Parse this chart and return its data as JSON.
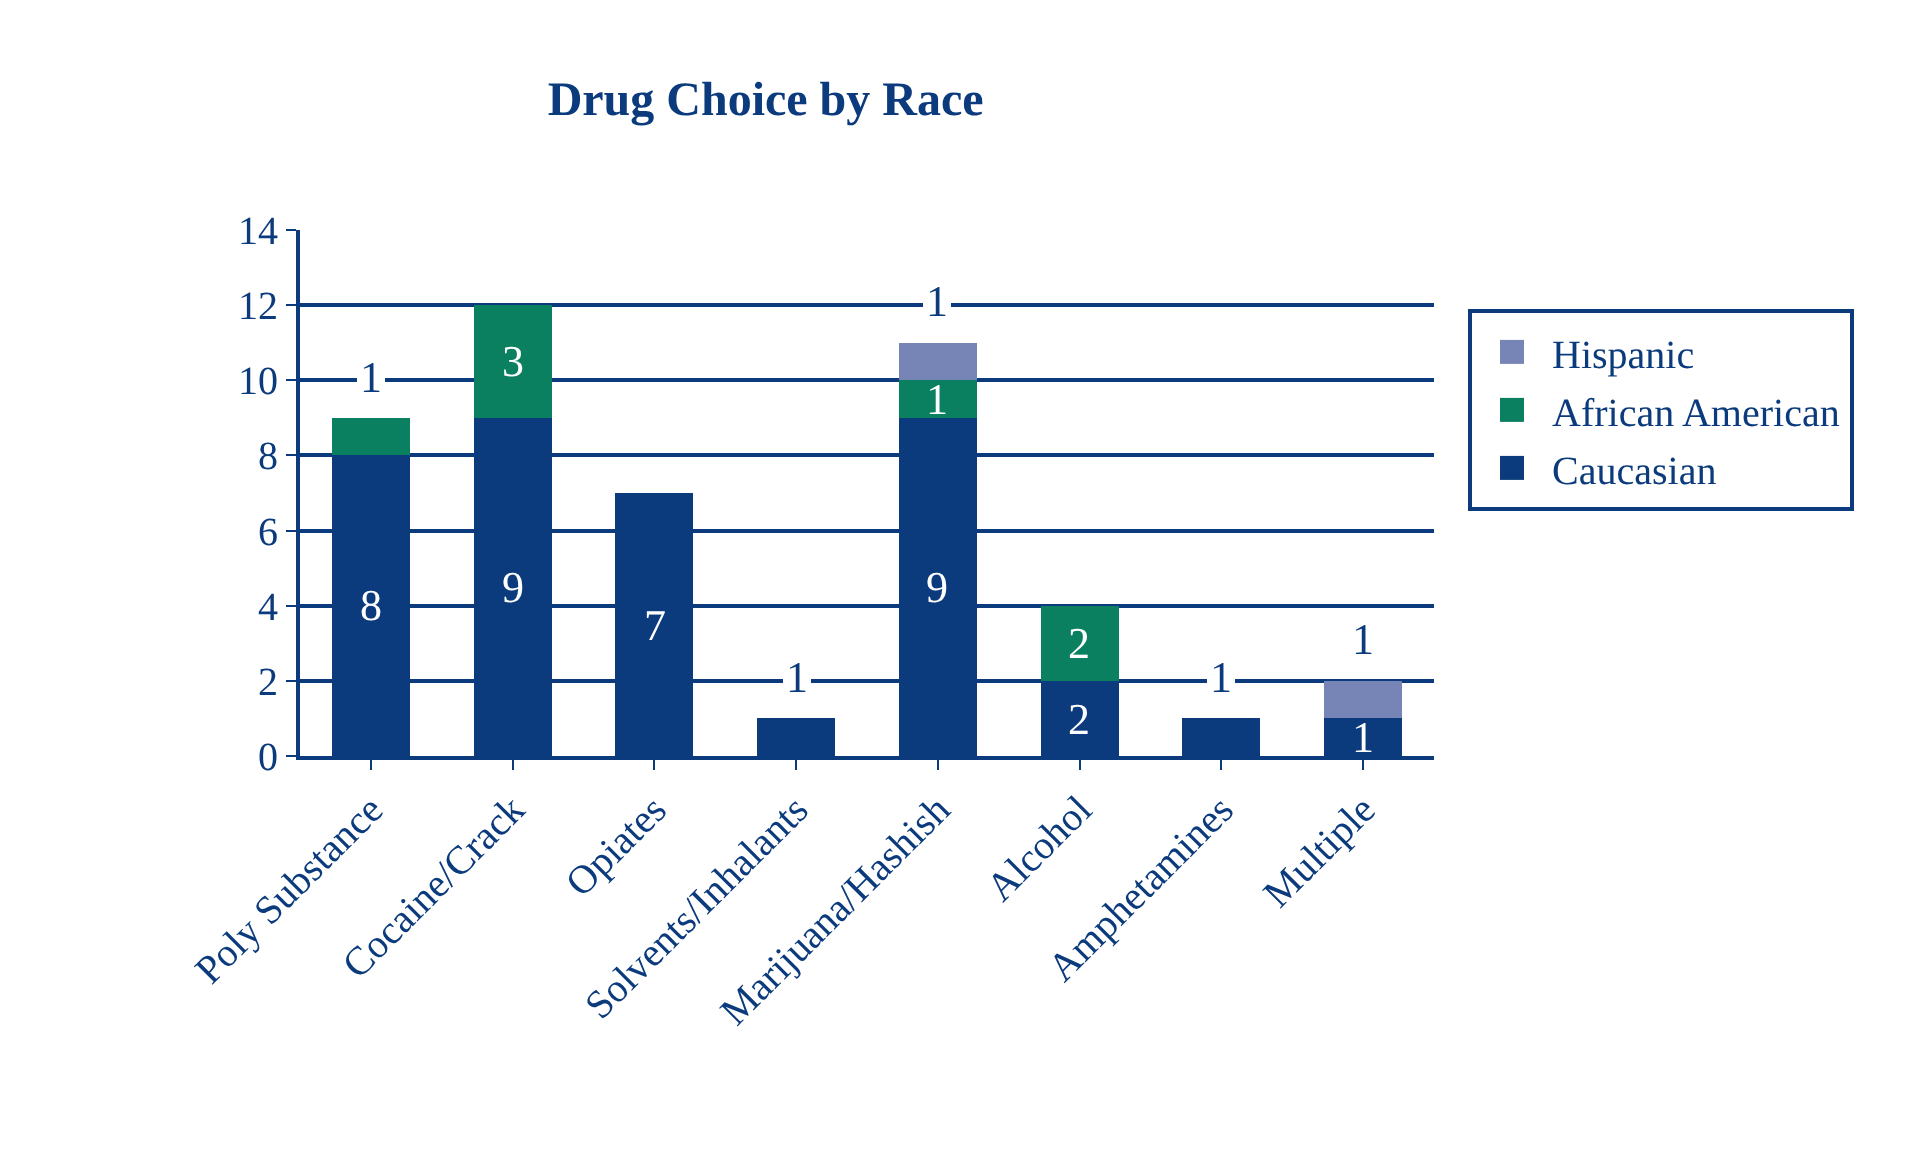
{
  "chart_data": {
    "type": "bar",
    "title": "Drug Choice by Race",
    "stacked": true,
    "categories": [
      "Poly Substance",
      "Cocaine/Crack",
      "Opiates",
      "Solvents/Inhalants",
      "Marijuana/Hashish",
      "Alcohol",
      "Amphetamines",
      "Multiple"
    ],
    "series": [
      {
        "name": "Caucasian",
        "color": "#0b3b7c",
        "values": [
          8,
          9,
          7,
          1,
          9,
          2,
          1,
          1
        ],
        "value_labels": [
          "8",
          "9",
          "7",
          "1",
          "9",
          "2",
          "1",
          "1"
        ]
      },
      {
        "name": "African American",
        "color": "#0a8060",
        "values": [
          1,
          3,
          null,
          null,
          1,
          2,
          null,
          null
        ],
        "value_labels": [
          "1",
          "3",
          null,
          null,
          "1",
          "2",
          null,
          null
        ]
      },
      {
        "name": "Hispanic",
        "color": "#7684b6",
        "values": [
          null,
          null,
          null,
          null,
          1,
          null,
          null,
          1
        ],
        "value_labels": [
          null,
          null,
          null,
          null,
          "1",
          null,
          null,
          "1"
        ]
      }
    ],
    "ylim": [
      0,
      14
    ],
    "yticks": [
      0,
      2,
      4,
      6,
      8,
      10,
      12,
      14
    ],
    "grid": "y",
    "legend": "right"
  }
}
